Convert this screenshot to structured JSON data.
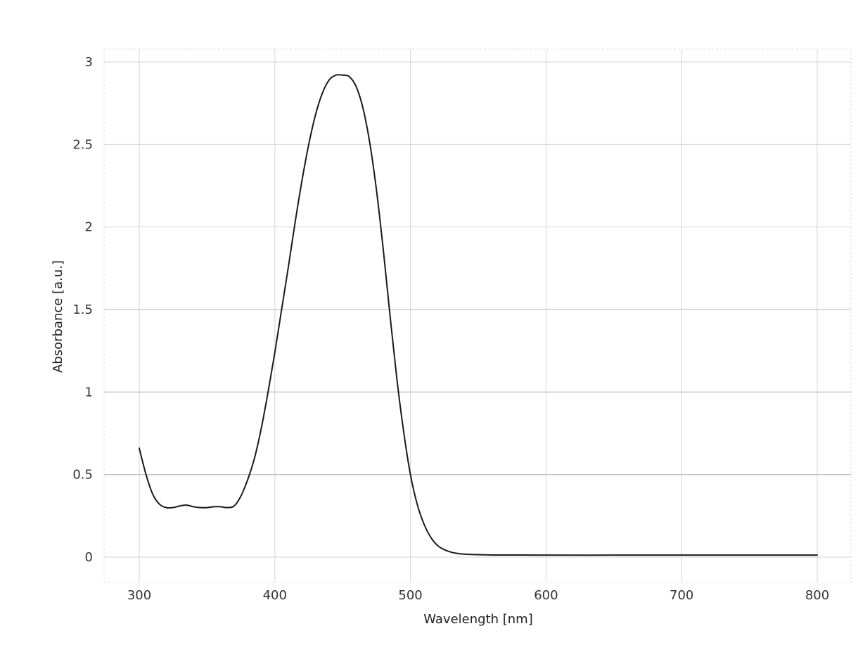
{
  "chart_data": {
    "type": "line",
    "title": "",
    "xlabel": "Wavelength [nm]",
    "ylabel": "Absorbance [a.u.]",
    "xlim": [
      275,
      825
    ],
    "ylim": [
      -0.13,
      3.07
    ],
    "xticks": [
      300,
      400,
      500,
      600,
      700,
      800
    ],
    "yticks": [
      0,
      0.5,
      1,
      1.5,
      2,
      2.5,
      3
    ],
    "xtick_labels": [
      "300",
      "400",
      "500",
      "600",
      "700",
      "800"
    ],
    "ytick_labels": [
      "0",
      "0.5",
      "1",
      "1.5",
      "2",
      "2.5",
      "3"
    ],
    "grid": true,
    "legend": "none",
    "series": [
      {
        "color": "#1a1a1a",
        "x": [
          300,
          305,
          310,
          315,
          320,
          325,
          330,
          335,
          340,
          345,
          350,
          355,
          360,
          365,
          370,
          375,
          380,
          385,
          390,
          395,
          400,
          405,
          410,
          415,
          420,
          425,
          430,
          435,
          440,
          445,
          450,
          455,
          460,
          465,
          470,
          475,
          480,
          485,
          490,
          495,
          500,
          505,
          510,
          515,
          520,
          525,
          530,
          535,
          540,
          545,
          550,
          555,
          560,
          570,
          580,
          600,
          650,
          700,
          750,
          800
        ],
        "y": [
          0.66,
          0.5,
          0.38,
          0.32,
          0.3,
          0.3,
          0.31,
          0.315,
          0.305,
          0.3,
          0.3,
          0.305,
          0.305,
          0.3,
          0.31,
          0.37,
          0.47,
          0.6,
          0.78,
          1.0,
          1.24,
          1.5,
          1.76,
          2.03,
          2.28,
          2.5,
          2.68,
          2.81,
          2.89,
          2.92,
          2.92,
          2.91,
          2.85,
          2.72,
          2.51,
          2.22,
          1.86,
          1.46,
          1.08,
          0.76,
          0.5,
          0.32,
          0.2,
          0.12,
          0.07,
          0.045,
          0.03,
          0.022,
          0.018,
          0.016,
          0.015,
          0.014,
          0.013,
          0.013,
          0.013,
          0.012,
          0.012,
          0.012,
          0.012,
          0.012
        ]
      }
    ]
  }
}
